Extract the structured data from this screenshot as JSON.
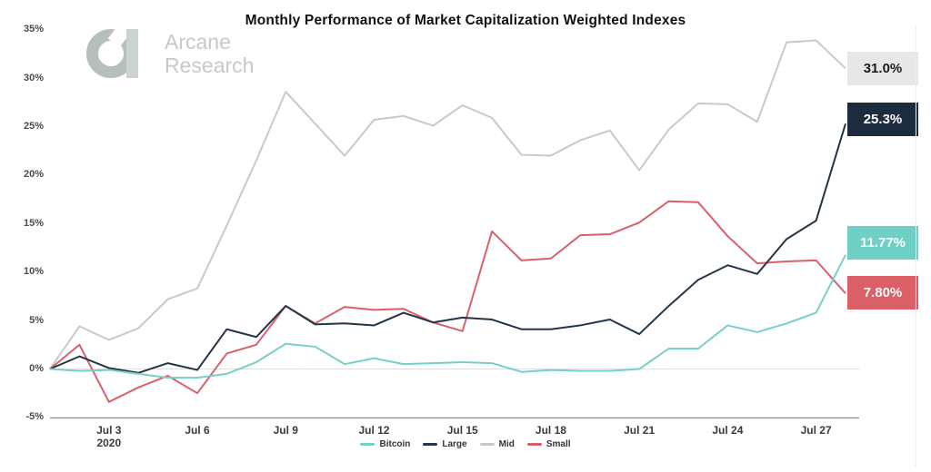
{
  "title": "Monthly Performance of Market Capitalization Weighted Indexes",
  "logo": {
    "line1": "Arcane",
    "line2": "Research"
  },
  "chart_data": {
    "type": "line",
    "title": "Monthly Performance of Market Capitalization Weighted Indexes",
    "ylim": [
      -5,
      35
    ],
    "yticks": [
      35,
      30,
      25,
      20,
      15,
      10,
      5,
      0,
      -5
    ],
    "ytick_suffix": "%",
    "grid": "zero-line-only",
    "legend_position": "bottom-center",
    "legend_order": [
      "Bitcoin",
      "Large",
      "Mid",
      "Small"
    ],
    "x": [
      "Jul 1",
      "Jul 2",
      "Jul 3",
      "Jul 4",
      "Jul 5",
      "Jul 6",
      "Jul 7",
      "Jul 8",
      "Jul 9",
      "Jul 10",
      "Jul 11",
      "Jul 12",
      "Jul 13",
      "Jul 14",
      "Jul 15",
      "Jul 16",
      "Jul 17",
      "Jul 18",
      "Jul 19",
      "Jul 20",
      "Jul 21",
      "Jul 22",
      "Jul 23",
      "Jul 24",
      "Jul 25",
      "Jul 26",
      "Jul 27",
      "Jul 28"
    ],
    "x_ticks": [
      {
        "index": 2,
        "label": "Jul 3",
        "sublabel": "2020"
      },
      {
        "index": 5,
        "label": "Jul 6"
      },
      {
        "index": 8,
        "label": "Jul 9"
      },
      {
        "index": 11,
        "label": "Jul 12"
      },
      {
        "index": 14,
        "label": "Jul 15"
      },
      {
        "index": 17,
        "label": "Jul 18"
      },
      {
        "index": 20,
        "label": "Jul 21"
      },
      {
        "index": 23,
        "label": "Jul 24"
      },
      {
        "index": 26,
        "label": "Jul 27"
      }
    ],
    "series": [
      {
        "name": "Mid",
        "color": "#c9c9c9",
        "end_label": "31.0%",
        "end_label_bg": "#e7e7e7",
        "end_label_text_color": "#1c1c1c",
        "values": [
          0,
          4.4,
          3.0,
          4.2,
          7.2,
          8.3,
          14.8,
          21.5,
          28.6,
          25.3,
          22.0,
          25.7,
          26.1,
          25.1,
          27.2,
          25.9,
          22.1,
          22.0,
          23.6,
          24.6,
          20.5,
          24.7,
          27.4,
          27.3,
          25.5,
          33.7,
          33.9,
          31.0
        ]
      },
      {
        "name": "Small",
        "color": "#d9606a",
        "end_label": "7.80%",
        "end_label_bg": "#da5f66",
        "end_label_text_color": "#ffffff",
        "values": [
          0,
          2.5,
          -3.4,
          -1.9,
          -0.7,
          -2.5,
          1.6,
          2.5,
          6.5,
          4.7,
          6.4,
          6.1,
          6.2,
          4.8,
          3.9,
          14.2,
          11.2,
          11.4,
          13.8,
          13.9,
          15.1,
          17.3,
          17.2,
          13.7,
          10.9,
          11.1,
          11.2,
          7.8
        ]
      },
      {
        "name": "Large",
        "color": "#243447",
        "end_label": "25.3%",
        "end_label_bg": "#1d2b3e",
        "end_label_text_color": "#ffffff",
        "values": [
          0,
          1.3,
          0.1,
          -0.4,
          0.6,
          -0.1,
          4.1,
          3.3,
          6.5,
          4.6,
          4.7,
          4.5,
          5.8,
          4.8,
          5.3,
          5.1,
          4.1,
          4.1,
          4.5,
          5.1,
          3.6,
          6.5,
          9.2,
          10.7,
          9.8,
          13.4,
          15.3,
          25.3
        ]
      },
      {
        "name": "Bitcoin",
        "color": "#76d0c6",
        "end_label": "11.77%",
        "end_label_bg": "#6fcfc4",
        "end_label_text_color": "#ffffff",
        "values": [
          0,
          -0.2,
          -0.1,
          -0.5,
          -0.9,
          -0.9,
          -0.5,
          0.7,
          2.6,
          2.3,
          0.5,
          1.1,
          0.5,
          0.6,
          0.7,
          0.6,
          -0.3,
          -0.1,
          -0.2,
          -0.2,
          0.0,
          2.1,
          2.1,
          4.5,
          3.8,
          4.7,
          5.8,
          11.77
        ]
      }
    ]
  }
}
